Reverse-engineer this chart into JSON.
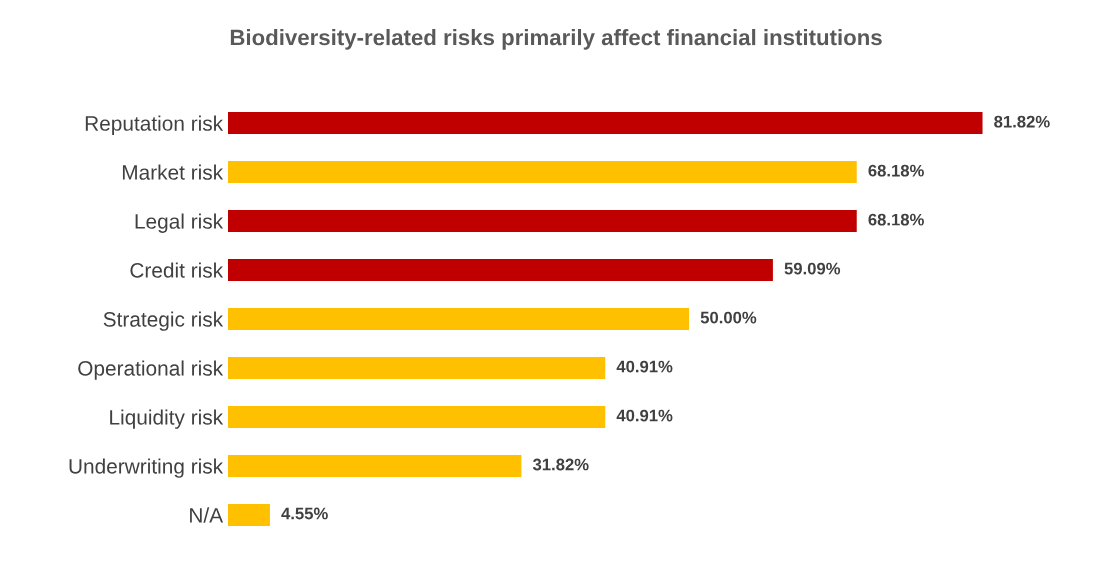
{
  "chart_data": {
    "type": "bar",
    "orientation": "horizontal",
    "title": "Biodiversity-related risks primarily affect financial institutions",
    "categories": [
      "Reputation risk",
      "Market risk",
      "Legal risk",
      "Credit risk",
      "Strategic risk",
      "Operational risk",
      "Liquidity risk",
      "Underwriting risk",
      "N/A"
    ],
    "values": [
      81.82,
      68.18,
      68.18,
      59.09,
      50.0,
      40.91,
      40.91,
      31.82,
      4.55
    ],
    "value_labels": [
      "81.82%",
      "68.18%",
      "68.18%",
      "59.09%",
      "50.00%",
      "40.91%",
      "40.91%",
      "31.82%",
      "4.55%"
    ],
    "colors": [
      "#c00000",
      "#ffc000",
      "#c00000",
      "#c00000",
      "#ffc000",
      "#ffc000",
      "#ffc000",
      "#ffc000",
      "#ffc000"
    ],
    "tick_labels": "y",
    "grid": false,
    "legend": false
  }
}
